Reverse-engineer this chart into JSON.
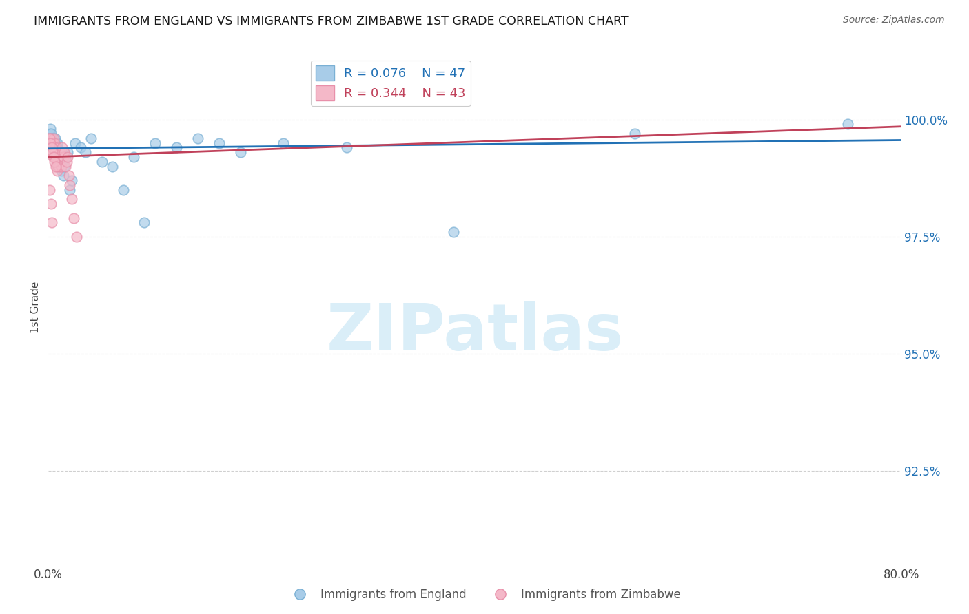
{
  "title": "IMMIGRANTS FROM ENGLAND VS IMMIGRANTS FROM ZIMBABWE 1ST GRADE CORRELATION CHART",
  "source": "Source: ZipAtlas.com",
  "ylabel": "1st Grade",
  "xlim": [
    0.0,
    80.0
  ],
  "ylim": [
    90.5,
    101.5
  ],
  "yticks": [
    92.5,
    95.0,
    97.5,
    100.0
  ],
  "ytick_labels": [
    "92.5%",
    "95.0%",
    "97.5%",
    "100.0%"
  ],
  "xticks": [
    0.0,
    10.0,
    20.0,
    30.0,
    40.0,
    50.0,
    60.0,
    70.0,
    80.0
  ],
  "xtick_labels": [
    "0.0%",
    "",
    "",
    "",
    "",
    "",
    "",
    "",
    "80.0%"
  ],
  "england_R": 0.076,
  "england_N": 47,
  "zimbabwe_R": 0.344,
  "zimbabwe_N": 43,
  "england_color": "#a8cce8",
  "zimbabwe_color": "#f4b8c8",
  "england_edge_color": "#7ab0d4",
  "zimbabwe_edge_color": "#e890aa",
  "england_line_color": "#2171b5",
  "zimbabwe_line_color": "#c0415a",
  "england_x": [
    0.1,
    0.15,
    0.2,
    0.25,
    0.3,
    0.35,
    0.4,
    0.45,
    0.5,
    0.55,
    0.6,
    0.65,
    0.7,
    0.75,
    0.8,
    0.85,
    0.9,
    0.95,
    1.0,
    1.1,
    1.2,
    1.3,
    1.4,
    1.5,
    1.6,
    1.8,
    2.0,
    2.2,
    2.5,
    3.0,
    3.5,
    4.0,
    5.0,
    6.0,
    7.0,
    8.0,
    9.0,
    10.0,
    12.0,
    14.0,
    16.0,
    18.0,
    22.0,
    28.0,
    38.0,
    55.0,
    75.0
  ],
  "england_y": [
    99.7,
    99.8,
    99.6,
    99.7,
    99.5,
    99.6,
    99.4,
    99.5,
    99.3,
    99.4,
    99.5,
    99.6,
    99.4,
    99.3,
    99.5,
    99.4,
    99.2,
    99.3,
    99.1,
    99.0,
    98.9,
    99.1,
    98.8,
    99.0,
    99.2,
    99.3,
    98.5,
    98.7,
    99.5,
    99.4,
    99.3,
    99.6,
    99.1,
    99.0,
    98.5,
    99.2,
    97.8,
    99.5,
    99.4,
    99.6,
    99.5,
    99.3,
    99.5,
    99.4,
    97.6,
    99.7,
    99.9
  ],
  "zimbabwe_x": [
    0.05,
    0.1,
    0.15,
    0.2,
    0.25,
    0.3,
    0.35,
    0.4,
    0.45,
    0.5,
    0.55,
    0.6,
    0.65,
    0.7,
    0.75,
    0.8,
    0.85,
    0.9,
    0.95,
    1.0,
    1.1,
    1.2,
    1.3,
    1.4,
    1.5,
    1.6,
    1.7,
    1.8,
    1.9,
    2.0,
    2.2,
    2.4,
    2.6,
    0.12,
    0.22,
    0.32,
    0.08,
    0.18,
    0.28,
    0.38,
    0.48,
    0.58,
    0.68
  ],
  "zimbabwe_y": [
    99.6,
    99.5,
    99.4,
    99.3,
    99.6,
    99.5,
    99.4,
    99.3,
    99.2,
    99.6,
    99.5,
    99.4,
    99.3,
    99.2,
    99.1,
    99.0,
    98.9,
    99.1,
    99.0,
    99.2,
    99.3,
    99.0,
    99.4,
    99.2,
    99.3,
    99.0,
    99.1,
    99.2,
    98.8,
    98.6,
    98.3,
    97.9,
    97.5,
    98.5,
    98.2,
    97.8,
    99.6,
    99.5,
    99.4,
    99.3,
    99.2,
    99.1,
    99.0
  ],
  "england_trendline": [
    99.38,
    99.56
  ],
  "zimbabwe_trendline": [
    99.2,
    99.85
  ],
  "watermark": "ZIPatlas",
  "watermark_color": "#daeef8",
  "background_color": "#ffffff",
  "grid_color": "#d0d0d0",
  "legend_england": "Immigrants from England",
  "legend_zimbabwe": "Immigrants from Zimbabwe"
}
